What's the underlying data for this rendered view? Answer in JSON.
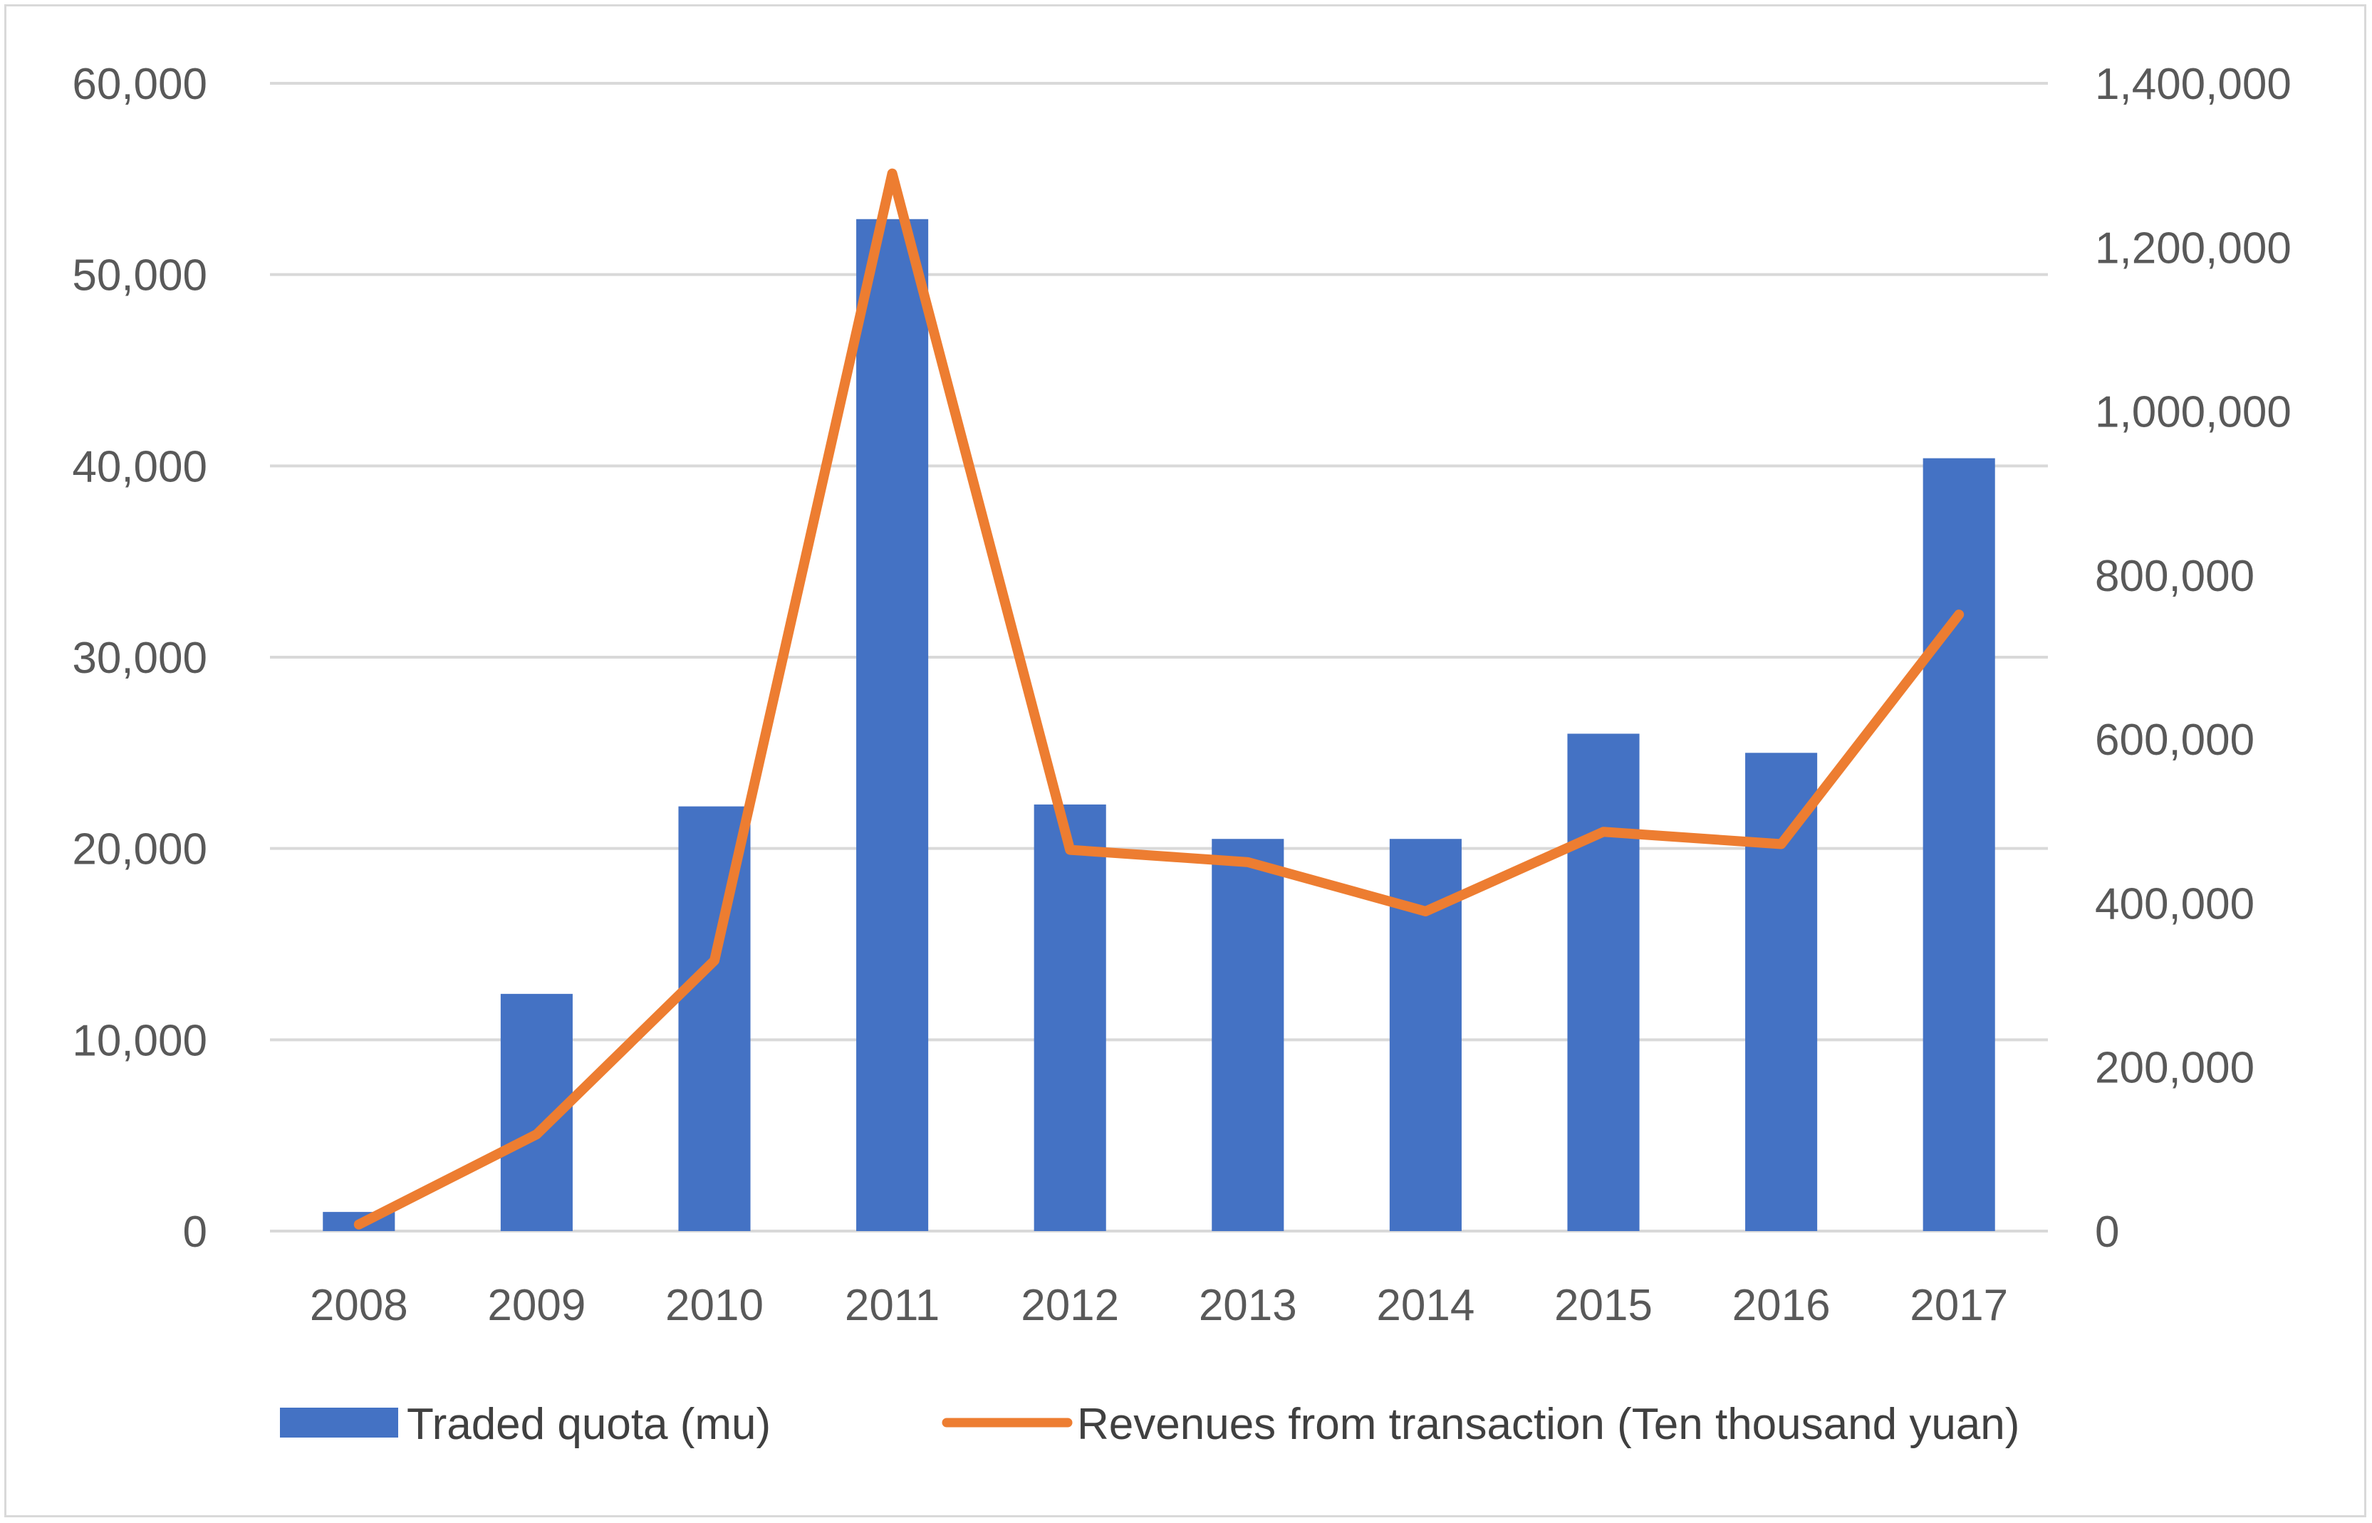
{
  "chart_data": {
    "type": "bar",
    "title": "",
    "xlabel": "",
    "ylabel": "",
    "y2label": "",
    "grid": true,
    "legend_position": "bottom",
    "categories": [
      "2008",
      "2009",
      "2010",
      "2011",
      "2012",
      "2013",
      "2014",
      "2015",
      "2016",
      "2017"
    ],
    "series": [
      {
        "name": "Traded quota (mu)",
        "type": "bar",
        "axis": "left",
        "color": "#4472c4",
        "values": [
          1000,
          12400,
          22200,
          52900,
          22300,
          20500,
          20500,
          26000,
          25000,
          40400
        ]
      },
      {
        "name": "Revenues from transaction (Ten thousand yuan)",
        "type": "line",
        "axis": "right",
        "color": "#ed7d31",
        "values": [
          8000,
          118000,
          330000,
          1290000,
          465000,
          450000,
          390000,
          487000,
          472000,
          752000
        ]
      }
    ],
    "ylim": [
      0,
      60000
    ],
    "y2lim": [
      0,
      1400000
    ],
    "yticks": [
      "0",
      "10,000",
      "20,000",
      "30,000",
      "40,000",
      "50,000",
      "60,000"
    ],
    "y2ticks": [
      "0",
      "200,000",
      "400,000",
      "600,000",
      "800,000",
      "1,000,000",
      "1,200,000",
      "1,400,000"
    ],
    "ytick_values": [
      0,
      10000,
      20000,
      30000,
      40000,
      50000,
      60000
    ],
    "y2tick_values": [
      0,
      200000,
      400000,
      600000,
      800000,
      1000000,
      1200000,
      1400000
    ]
  }
}
